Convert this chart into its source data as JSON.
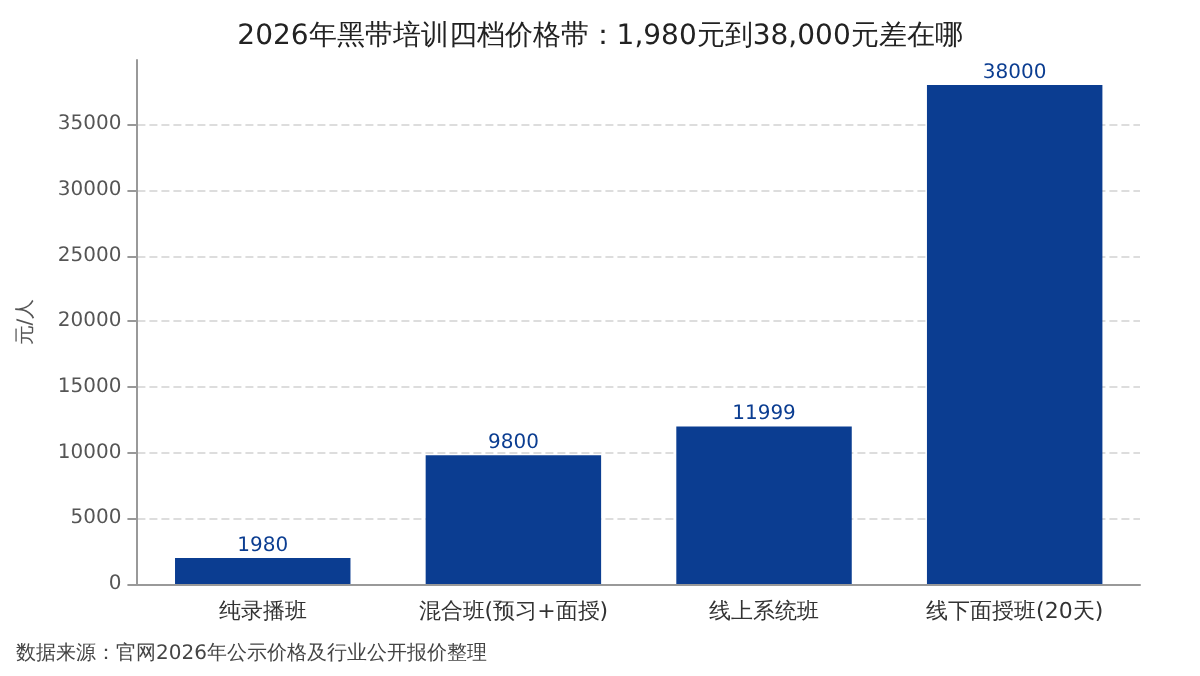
{
  "chart_data": {
    "type": "bar",
    "title": "2026年黑带培训四档价格带：1,980元到38,000元差在哪",
    "ylabel": "元/人",
    "categories": [
      "纯录播班",
      "混合班(预习+面授)",
      "线上系统班",
      "线下面授班(20天)"
    ],
    "values": [
      1980,
      9800,
      11999,
      38000
    ],
    "color": "#0b3d91",
    "ylim": [
      0,
      39900
    ],
    "yticks": [
      0,
      5000,
      10000,
      15000,
      20000,
      25000,
      30000,
      35000
    ],
    "grid": "y",
    "data_labels": true,
    "annotations": [
      "数据来源：官网2026年公示价格及行业公开报价整理"
    ]
  }
}
